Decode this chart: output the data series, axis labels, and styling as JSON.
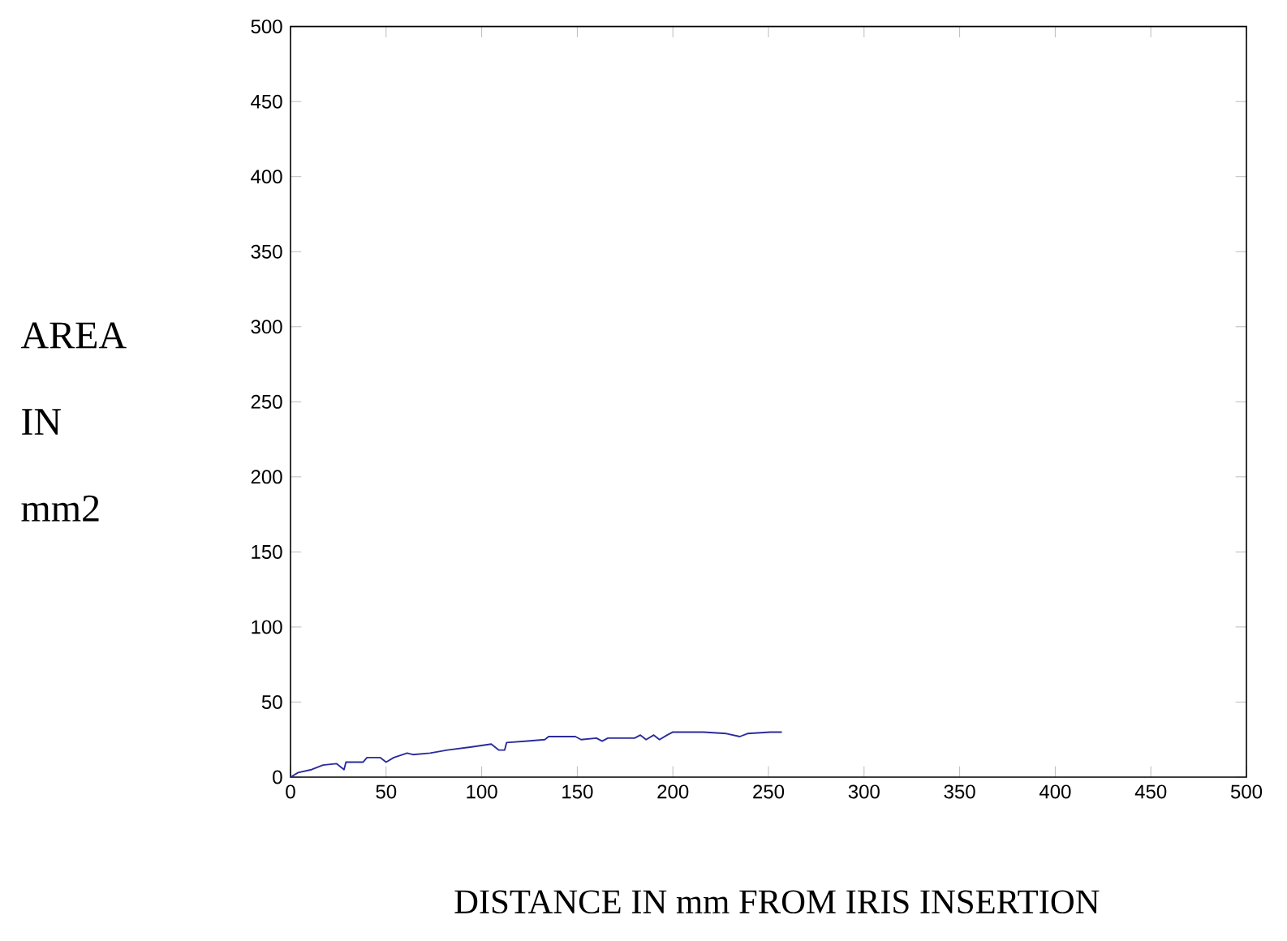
{
  "chart_data": {
    "type": "line",
    "xlabel": "DISTANCE IN mm FROM IRIS INSERTION",
    "ylabel": "AREA IN mm2",
    "xlim": [
      0,
      500
    ],
    "ylim": [
      0,
      500
    ],
    "xticks": [
      0,
      50,
      100,
      150,
      200,
      250,
      300,
      350,
      400,
      450,
      500
    ],
    "yticks": [
      0,
      50,
      100,
      150,
      200,
      250,
      300,
      350,
      400,
      450,
      500
    ],
    "series": [
      {
        "color": "#2b2b9c",
        "x": [
          0,
          4,
          11,
          17,
          24,
          28,
          29,
          38,
          40,
          47,
          50,
          54,
          61,
          64,
          73,
          82,
          94,
          105,
          109,
          112,
          113,
          124,
          133,
          135,
          149,
          152,
          160,
          163,
          166,
          180,
          183,
          186,
          190,
          193,
          197,
          200,
          207,
          216,
          228,
          235,
          239,
          251,
          257
        ],
        "values": [
          0,
          3,
          5,
          8,
          9,
          5,
          10,
          10,
          13,
          13,
          10,
          13,
          16,
          15,
          16,
          18,
          20,
          22,
          18,
          18,
          23,
          24,
          25,
          27,
          27,
          25,
          26,
          24,
          26,
          26,
          28,
          25,
          28,
          25,
          28,
          30,
          30,
          30,
          29,
          27,
          29,
          30,
          30
        ]
      }
    ]
  }
}
